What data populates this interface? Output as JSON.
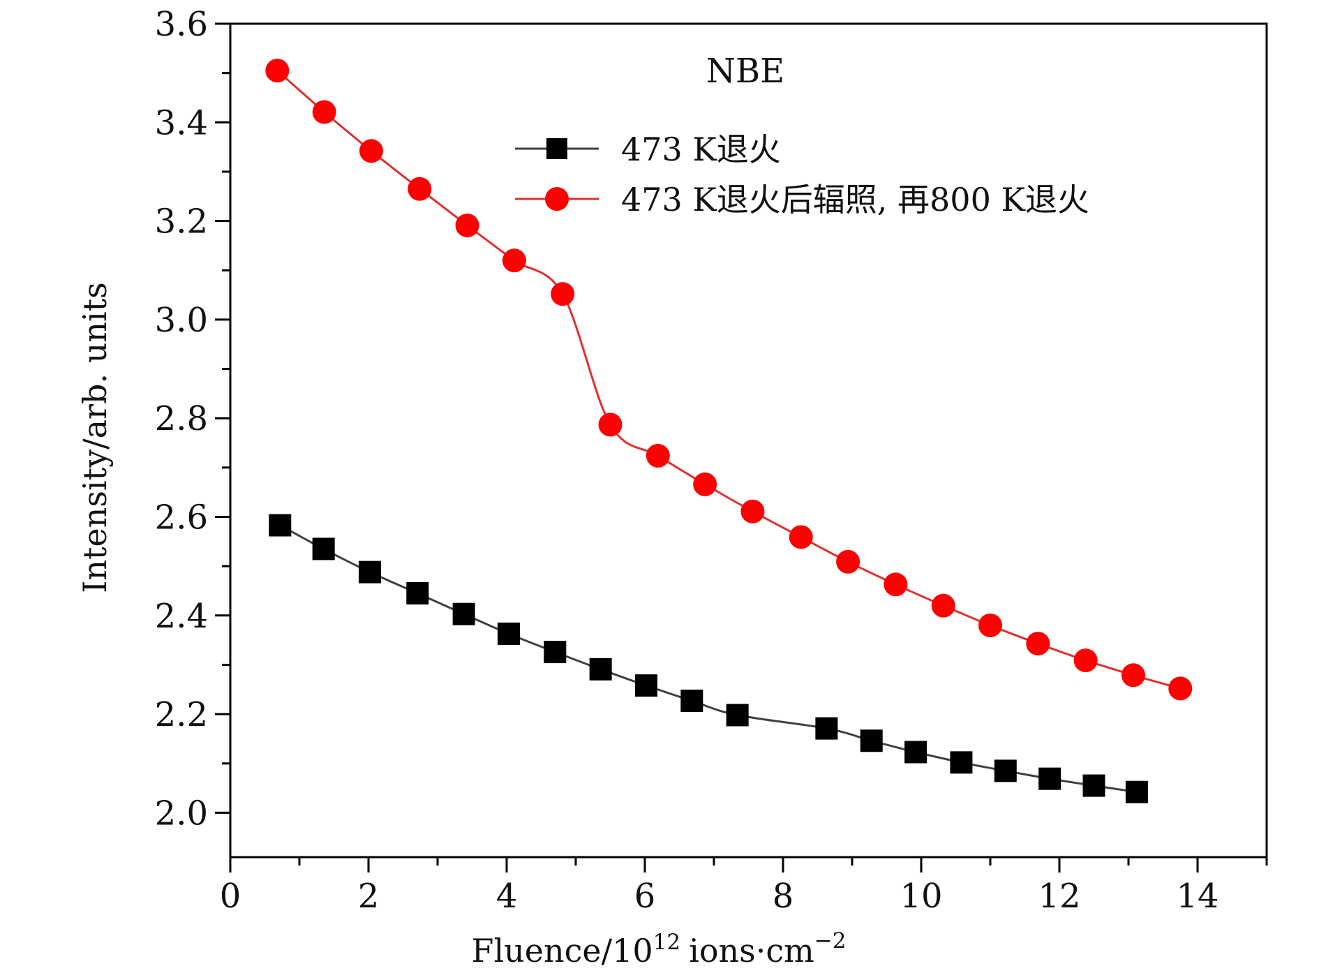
{
  "chart_data": {
    "type": "line",
    "title": "NBE",
    "xlabel": "Fluence/10",
    "xlabel_superscript": "12",
    "xlabel_units": "ions·cm",
    "xlabel_units_superscript": "−2",
    "ylabel": "Intensity/arb. units",
    "xlim": [
      0,
      15
    ],
    "ylim": [
      1.91,
      3.6
    ],
    "x_ticks": [
      0,
      2,
      4,
      6,
      8,
      10,
      12,
      14
    ],
    "x_tick_labels": [
      "0",
      "2",
      "4",
      "6",
      "8",
      "10",
      "12",
      "14"
    ],
    "x_minor_step": 1,
    "y_ticks": [
      2.0,
      2.2,
      2.4,
      2.6,
      2.8,
      3.0,
      3.2,
      3.4,
      3.6
    ],
    "y_tick_labels": [
      "2.0",
      "2.2",
      "2.4",
      "2.6",
      "2.8",
      "3.0",
      "3.2",
      "3.4",
      "3.6"
    ],
    "y_minor_step": 0.1,
    "grid": false,
    "legend_position": "top-right",
    "series": [
      {
        "name": "473 K退火",
        "color": "#000000",
        "line_color": "#404040",
        "marker": "square",
        "x": [
          0.72,
          1.35,
          2.02,
          2.71,
          3.38,
          4.03,
          4.7,
          5.36,
          6.02,
          6.68,
          7.34,
          8.63,
          9.28,
          9.92,
          10.58,
          11.22,
          11.86,
          12.5,
          13.12
        ],
        "y": [
          2.583,
          2.535,
          2.488,
          2.445,
          2.403,
          2.363,
          2.326,
          2.291,
          2.258,
          2.227,
          2.198,
          2.171,
          2.146,
          2.123,
          2.102,
          2.085,
          2.069,
          2.055,
          2.042
        ]
      },
      {
        "name": "473 K退火后辐照, 再800 K退火",
        "color": "#ff0000",
        "line_color": "#e03030",
        "marker": "circle",
        "x": [
          0.68,
          1.36,
          2.04,
          2.74,
          3.43,
          4.11,
          4.81,
          5.5,
          6.19,
          6.87,
          7.56,
          8.26,
          8.94,
          9.63,
          10.32,
          11.0,
          11.69,
          12.38,
          13.07,
          13.75
        ],
        "y": [
          3.505,
          3.421,
          3.342,
          3.265,
          3.191,
          3.12,
          3.052,
          2.787,
          2.724,
          2.666,
          2.611,
          2.559,
          2.509,
          2.463,
          2.42,
          2.38,
          2.343,
          2.309,
          2.279,
          2.252
        ]
      }
    ]
  }
}
